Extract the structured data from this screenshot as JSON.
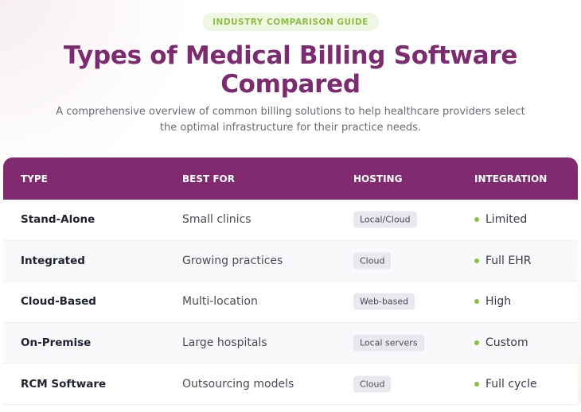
{
  "badge": "INDUSTRY COMPARISON GUIDE",
  "title": "Types of Medical Billing Software Compared",
  "subtitle": "A comprehensive overview of common billing solutions to help healthcare providers select the optimal infrastructure for their practice needs.",
  "colors": {
    "brand": "#822a70",
    "accent": "#8dc040"
  },
  "table": {
    "headers": [
      "TYPE",
      "BEST FOR",
      "HOSTING",
      "INTEGRATION"
    ],
    "rows": [
      {
        "type": "Stand-Alone",
        "best_for": "Small clinics",
        "hosting": "Local/Cloud",
        "integration": "Limited"
      },
      {
        "type": "Integrated",
        "best_for": "Growing practices",
        "hosting": "Cloud",
        "integration": "Full EHR"
      },
      {
        "type": "Cloud-Based",
        "best_for": "Multi-location",
        "hosting": "Web-based",
        "integration": "High"
      },
      {
        "type": "On-Premise",
        "best_for": "Large hospitals",
        "hosting": "Local servers",
        "integration": "Custom"
      },
      {
        "type": "RCM Software",
        "best_for": "Outsourcing models",
        "hosting": "Cloud",
        "integration": "Full cycle"
      }
    ]
  }
}
